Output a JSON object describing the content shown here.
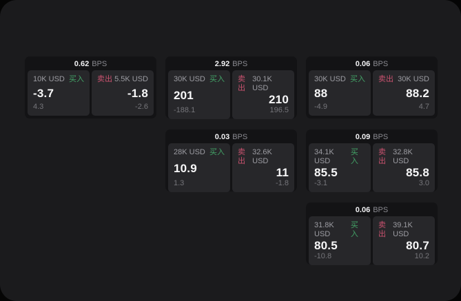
{
  "labels": {
    "bps": "BPS",
    "buy": "买入",
    "sell": "卖出"
  },
  "colors": {
    "window_bg": "#1b1b1d",
    "card_bg": "#131315",
    "panel_bg": "#27272a",
    "buy_green": "#43a367",
    "sell_red": "#c9526f",
    "value_white": "#f7f7f8",
    "muted_grey": "#9c9ca2"
  },
  "cards": [
    {
      "bps": "0.62",
      "buy": {
        "amount": "10K USD",
        "value": "-3.7",
        "delta": "4.3"
      },
      "sell": {
        "amount": "5.5K USD",
        "value": "-1.8",
        "delta": "-2.6"
      }
    },
    {
      "bps": "2.92",
      "buy": {
        "amount": "30K USD",
        "value": "201",
        "delta": "-188.1"
      },
      "sell": {
        "amount": "30.1K USD",
        "value": "210",
        "delta": "196.5"
      }
    },
    {
      "bps": "0.06",
      "buy": {
        "amount": "30K USD",
        "value": "88",
        "delta": "-4.9"
      },
      "sell": {
        "amount": "30K USD",
        "value": "88.2",
        "delta": "4.7"
      }
    },
    {
      "bps": "0.03",
      "buy": {
        "amount": "28K USD",
        "value": "10.9",
        "delta": "1.3"
      },
      "sell": {
        "amount": "32.6K USD",
        "value": "11",
        "delta": "-1.8"
      }
    },
    {
      "bps": "0.09",
      "buy": {
        "amount": "34.1K USD",
        "value": "85.5",
        "delta": "-3.1"
      },
      "sell": {
        "amount": "32.8K USD",
        "value": "85.8",
        "delta": "3.0"
      }
    },
    {
      "bps": "0.06",
      "buy": {
        "amount": "31.8K USD",
        "value": "80.5",
        "delta": "-10.8"
      },
      "sell": {
        "amount": "39.1K USD",
        "value": "80.7",
        "delta": "10.2"
      }
    }
  ]
}
